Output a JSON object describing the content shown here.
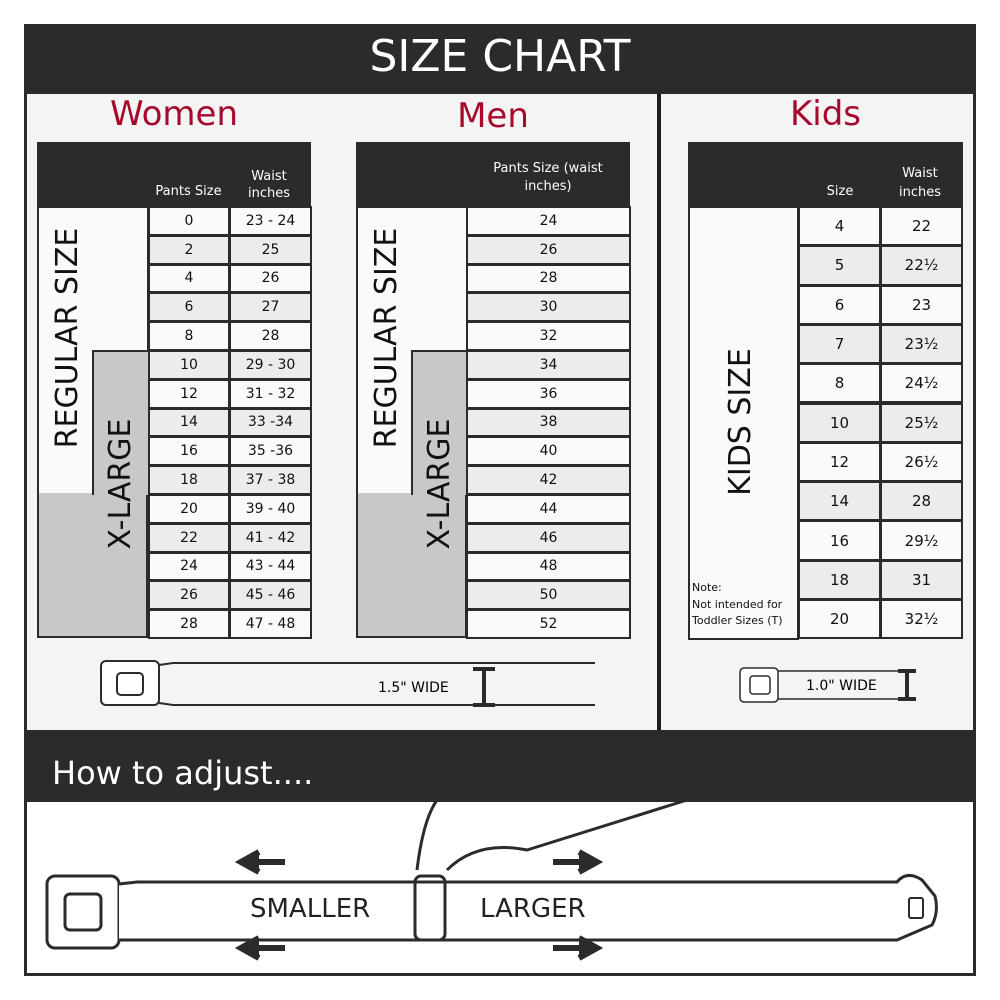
{
  "title": "SIZE CHART",
  "women": {
    "title": "Women",
    "col1": "Pants Size",
    "col2": "Waist inches",
    "regular_label": "REGULAR SIZE",
    "xlarge_label": "X-LARGE",
    "rows": [
      [
        "0",
        "23 - 24"
      ],
      [
        "2",
        "25"
      ],
      [
        "4",
        "26"
      ],
      [
        "6",
        "27"
      ],
      [
        "8",
        "28"
      ],
      [
        "10",
        "29 - 30"
      ],
      [
        "12",
        "31 - 32"
      ],
      [
        "14",
        "33 -34"
      ],
      [
        "16",
        "35 -36"
      ],
      [
        "18",
        "37 - 38"
      ],
      [
        "20",
        "39 - 40"
      ],
      [
        "22",
        "41 - 42"
      ],
      [
        "24",
        "43 - 44"
      ],
      [
        "26",
        "45 - 46"
      ],
      [
        "28",
        "47 - 48"
      ]
    ],
    "belt_width": "1.5\" WIDE"
  },
  "men": {
    "title": "Men",
    "col1": "Pants Size (waist inches)",
    "regular_label": "REGULAR SIZE",
    "xlarge_label": "X-LARGE",
    "rows": [
      "24",
      "26",
      "28",
      "30",
      "32",
      "34",
      "36",
      "38",
      "40",
      "42",
      "44",
      "46",
      "48",
      "50",
      "52"
    ]
  },
  "kids": {
    "title": "Kids",
    "col1": "Size",
    "col2": "Waist inches",
    "label": "KIDS SIZE",
    "note_title": "Note:",
    "note_text": "Not intended for Toddler Sizes (T)",
    "rows": [
      [
        "4",
        "22"
      ],
      [
        "5",
        "22½"
      ],
      [
        "6",
        "23"
      ],
      [
        "7",
        "23½"
      ],
      [
        "8",
        "24½"
      ],
      [
        "10",
        "25½"
      ],
      [
        "12",
        "26½"
      ],
      [
        "14",
        "28"
      ],
      [
        "16",
        "29½"
      ],
      [
        "18",
        "31"
      ],
      [
        "20",
        "32½"
      ]
    ],
    "belt_width": "1.0\" WIDE"
  },
  "adjust": {
    "title": "How to adjust....",
    "smaller": "SMALLER",
    "larger": "LARGER"
  },
  "colors": {
    "dark": "#2b2b2b",
    "accent": "#a50a2d",
    "xlarge_fill": "#c8c8c8"
  }
}
